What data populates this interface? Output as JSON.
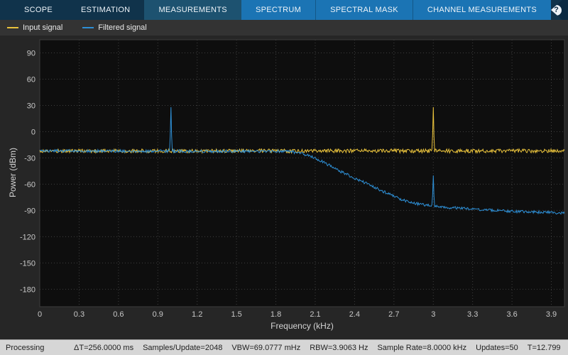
{
  "header": {
    "tabs": [
      {
        "label": "SCOPE"
      },
      {
        "label": "ESTIMATION"
      },
      {
        "label": "MEASUREMENTS"
      },
      {
        "label": "SPECTRUM"
      },
      {
        "label": "SPECTRAL MASK"
      },
      {
        "label": "CHANNEL MEASUREMENTS"
      }
    ],
    "help_label": "?"
  },
  "chart_data": {
    "type": "line",
    "title": "",
    "xlabel": "Frequency (kHz)",
    "ylabel": "Power (dBm)",
    "xlim": [
      0,
      4
    ],
    "ylim": [
      -200,
      105
    ],
    "xticks": [
      0,
      0.3,
      0.6,
      0.9,
      1.2,
      1.5,
      1.8,
      2.1,
      2.4,
      2.7,
      3,
      3.3,
      3.6,
      3.9
    ],
    "yticks": [
      90,
      60,
      30,
      0,
      -30,
      -60,
      -90,
      -120,
      -150,
      -180
    ],
    "grid": true,
    "legend_position": "top-bar-left",
    "series": [
      {
        "name": "Input signal",
        "color": "#E9C23C",
        "noise_db": 2.2,
        "envelope": [
          [
            0,
            -22
          ],
          [
            4,
            -22
          ]
        ],
        "spikes": [
          {
            "x": 3,
            "peak": 28
          }
        ]
      },
      {
        "name": "Filtered signal",
        "color": "#2E8FD5",
        "noise_db": 1.6,
        "envelope": [
          [
            0,
            -22
          ],
          [
            1.9,
            -22.5
          ],
          [
            2.0,
            -25
          ],
          [
            2.1,
            -30
          ],
          [
            2.2,
            -38
          ],
          [
            2.3,
            -46
          ],
          [
            2.4,
            -53
          ],
          [
            2.5,
            -60
          ],
          [
            2.6,
            -67
          ],
          [
            2.7,
            -74
          ],
          [
            2.8,
            -80
          ],
          [
            2.9,
            -83
          ],
          [
            3.0,
            -85
          ],
          [
            3.1,
            -86.5
          ],
          [
            3.3,
            -88.5
          ],
          [
            3.6,
            -91
          ],
          [
            4.0,
            -93
          ]
        ],
        "spikes": [
          {
            "x": 1,
            "peak": 28
          },
          {
            "x": 3,
            "peak": -50
          }
        ]
      }
    ]
  },
  "status": {
    "state": "Processing",
    "delta_t": "ΔT=256.0000 ms",
    "samples": "Samples/Update=2048",
    "vbw": "VBW=69.0777 mHz",
    "rbw": "RBW=3.9063 Hz",
    "rate": "Sample Rate=8.0000 kHz",
    "updates": "Updates=50",
    "time": "T=12.799"
  }
}
